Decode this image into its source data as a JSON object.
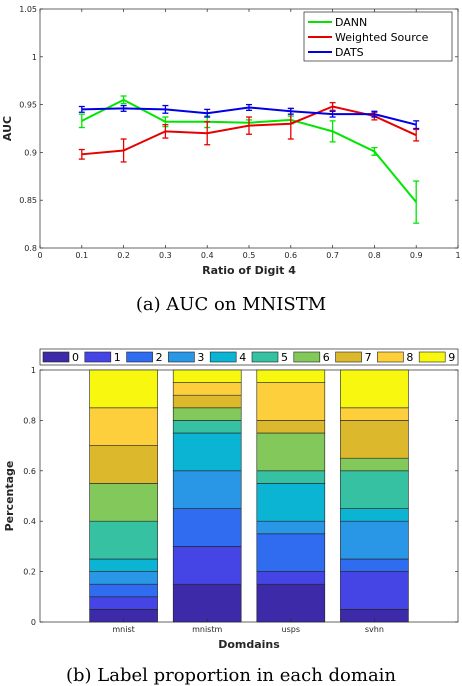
{
  "chart_data": [
    {
      "type": "line",
      "xlabel": "Ratio of Digit 4",
      "ylabel": "AUC",
      "xlim": [
        0,
        1
      ],
      "ylim": [
        0.8,
        1.05
      ],
      "xticks": [
        "0",
        "0.1",
        "0.2",
        "0.3",
        "0.4",
        "0.5",
        "0.6",
        "0.7",
        "0.8",
        "0.9",
        "1"
      ],
      "yticks": [
        "0.8",
        "0.85",
        "0.9",
        "0.95",
        "1",
        "1.05"
      ],
      "legend_position": "top-right",
      "x": [
        0.1,
        0.2,
        0.3,
        0.4,
        0.5,
        0.6,
        0.7,
        0.8,
        0.9
      ],
      "series": [
        {
          "name": "DANN",
          "color": "#00e600",
          "values": [
            0.933,
            0.955,
            0.932,
            0.932,
            0.931,
            0.934,
            0.922,
            0.901,
            0.848
          ],
          "err": [
            0.007,
            0.004,
            0.005,
            0.006,
            0.003,
            0.004,
            0.011,
            0.004,
            0.022
          ]
        },
        {
          "name": "Weighted Source",
          "color": "#e60000",
          "values": [
            0.898,
            0.902,
            0.922,
            0.92,
            0.928,
            0.93,
            0.948,
            0.938,
            0.918
          ],
          "err": [
            0.005,
            0.012,
            0.007,
            0.012,
            0.009,
            0.016,
            0.004,
            0.004,
            0.006
          ]
        },
        {
          "name": "DATS",
          "color": "#0000e6",
          "values": [
            0.945,
            0.946,
            0.945,
            0.941,
            0.947,
            0.943,
            0.94,
            0.94,
            0.929
          ],
          "err": [
            0.003,
            0.003,
            0.004,
            0.004,
            0.003,
            0.003,
            0.003,
            0.003,
            0.004
          ]
        }
      ]
    },
    {
      "type": "bar",
      "stacked": true,
      "xlabel": "Domdains",
      "ylabel": "Percentage",
      "ylim": [
        0,
        1
      ],
      "yticks": [
        "0",
        "0.2",
        "0.4",
        "0.6",
        "0.8",
        "1"
      ],
      "categories": [
        "mnist",
        "mnistm",
        "usps",
        "svhn"
      ],
      "legend_position": "top",
      "series": [
        {
          "name": "0",
          "color": "#3d2aa8",
          "values": [
            0.05,
            0.15,
            0.15,
            0.05
          ]
        },
        {
          "name": "1",
          "color": "#4545e6",
          "values": [
            0.05,
            0.15,
            0.05,
            0.15
          ]
        },
        {
          "name": "2",
          "color": "#2f6cf0",
          "values": [
            0.05,
            0.15,
            0.15,
            0.05
          ]
        },
        {
          "name": "3",
          "color": "#2a96e6",
          "values": [
            0.05,
            0.15,
            0.05,
            0.15
          ]
        },
        {
          "name": "4",
          "color": "#0cb4d4",
          "values": [
            0.05,
            0.15,
            0.15,
            0.05
          ]
        },
        {
          "name": "5",
          "color": "#36c2a2",
          "values": [
            0.15,
            0.05,
            0.05,
            0.15
          ]
        },
        {
          "name": "6",
          "color": "#82c85a",
          "values": [
            0.15,
            0.05,
            0.15,
            0.05
          ]
        },
        {
          "name": "7",
          "color": "#dcb92c",
          "values": [
            0.15,
            0.05,
            0.05,
            0.15
          ]
        },
        {
          "name": "8",
          "color": "#fdcf3c",
          "values": [
            0.15,
            0.05,
            0.15,
            0.05
          ]
        },
        {
          "name": "9",
          "color": "#f7f70f",
          "values": [
            0.15,
            0.05,
            0.05,
            0.15
          ]
        }
      ]
    }
  ],
  "captions": {
    "top": "(a) AUC on MNISTM",
    "bottom": "(b) Label proportion in each domain"
  }
}
